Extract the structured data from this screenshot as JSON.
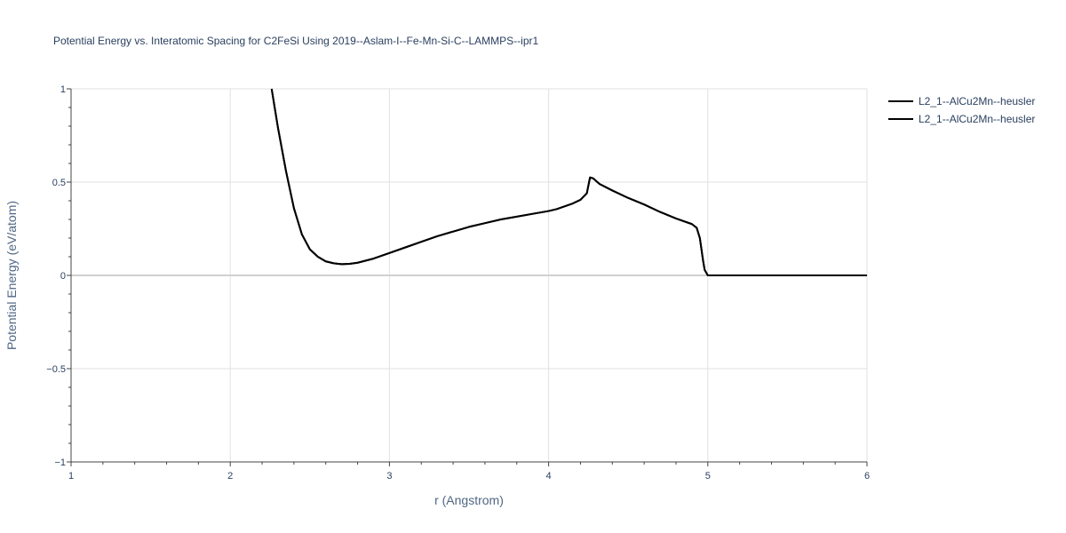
{
  "chart_data": {
    "type": "line",
    "title": "Potential Energy vs. Interatomic Spacing for C2FeSi Using 2019--Aslam-I--Fe-Mn-Si-C--LAMMPS--ipr1",
    "xlabel": "r (Angstrom)",
    "ylabel": "Potential Energy (eV/atom)",
    "xlim": [
      1,
      6
    ],
    "ylim": [
      -1,
      1
    ],
    "x_ticks": [
      1,
      2,
      3,
      4,
      5,
      6
    ],
    "x_tick_labels": [
      "1",
      "2",
      "3",
      "4",
      "5",
      "6"
    ],
    "y_ticks": [
      -1,
      -0.5,
      0,
      0.5,
      1
    ],
    "y_tick_labels": [
      "−1",
      "−0.5",
      "0",
      "0.5",
      "1"
    ],
    "grid": true,
    "legend_position": "top-right",
    "series": [
      {
        "name": "L2_1--AlCu2Mn--heusler",
        "color": "#000000",
        "x": [
          2.26,
          2.3,
          2.35,
          2.4,
          2.45,
          2.5,
          2.55,
          2.6,
          2.65,
          2.7,
          2.75,
          2.8,
          2.9,
          3.0,
          3.1,
          3.2,
          3.3,
          3.4,
          3.5,
          3.6,
          3.7,
          3.8,
          3.9,
          4.0,
          4.05,
          4.1,
          4.15,
          4.2,
          4.24,
          4.26,
          4.28,
          4.3,
          4.32,
          4.4,
          4.5,
          4.6,
          4.7,
          4.8,
          4.9,
          4.93,
          4.95,
          4.97,
          4.98,
          5.0,
          5.5,
          6.0
        ],
        "y": [
          1.0,
          0.79,
          0.56,
          0.36,
          0.22,
          0.14,
          0.1,
          0.075,
          0.065,
          0.06,
          0.062,
          0.068,
          0.09,
          0.12,
          0.15,
          0.18,
          0.21,
          0.235,
          0.26,
          0.28,
          0.3,
          0.315,
          0.33,
          0.345,
          0.355,
          0.37,
          0.385,
          0.405,
          0.44,
          0.525,
          0.52,
          0.505,
          0.49,
          0.455,
          0.415,
          0.38,
          0.34,
          0.305,
          0.275,
          0.255,
          0.2,
          0.08,
          0.03,
          0.0,
          0.0,
          0.0
        ]
      },
      {
        "name": "L2_1--AlCu2Mn--heusler",
        "color": "#000000",
        "x": [
          2.26,
          2.3,
          2.35,
          2.4,
          2.45,
          2.5,
          2.55,
          2.6,
          2.65,
          2.7,
          2.75,
          2.8,
          2.9,
          3.0,
          3.1,
          3.2,
          3.3,
          3.4,
          3.5,
          3.6,
          3.7,
          3.8,
          3.9,
          4.0,
          4.05,
          4.1,
          4.15,
          4.2,
          4.24,
          4.26,
          4.28,
          4.3,
          4.32,
          4.4,
          4.5,
          4.6,
          4.7,
          4.8,
          4.9,
          4.93,
          4.95,
          4.97,
          4.98,
          5.0,
          5.5,
          6.0
        ],
        "y": [
          1.0,
          0.79,
          0.56,
          0.36,
          0.22,
          0.14,
          0.1,
          0.075,
          0.065,
          0.06,
          0.062,
          0.068,
          0.09,
          0.12,
          0.15,
          0.18,
          0.21,
          0.235,
          0.26,
          0.28,
          0.3,
          0.315,
          0.33,
          0.345,
          0.355,
          0.37,
          0.385,
          0.405,
          0.44,
          0.525,
          0.52,
          0.505,
          0.49,
          0.455,
          0.415,
          0.38,
          0.34,
          0.305,
          0.275,
          0.255,
          0.2,
          0.08,
          0.03,
          0.0,
          0.0,
          0.0
        ]
      }
    ]
  },
  "colors": {
    "grid": "#e1e1e1",
    "zero_line": "#d0d0d0",
    "axis_text": "#2a3f5f",
    "axis_title": "#506784"
  }
}
